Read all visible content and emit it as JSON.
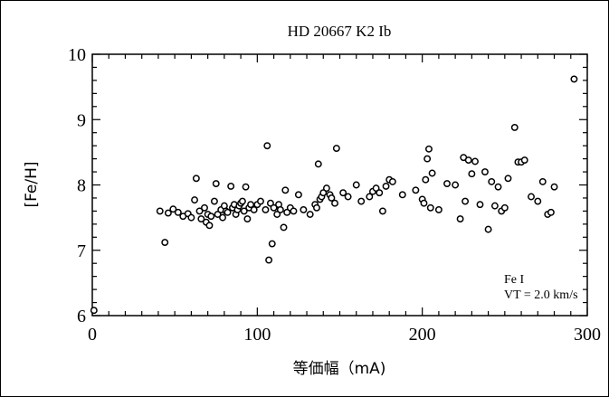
{
  "chart_data": {
    "type": "scatter",
    "title": "HD 20667  K2 Ib",
    "xlabel": "等価幅（mA)",
    "ylabel": "[Fe/H]",
    "xlim": [
      0,
      300
    ],
    "ylim": [
      6,
      10
    ],
    "x_ticks": [
      "0",
      "100",
      "200",
      "300"
    ],
    "y_ticks": [
      "6",
      "7",
      "8",
      "9",
      "10"
    ],
    "annotation": [
      "Fe I",
      "VT = 2.0 km/s"
    ],
    "grid": false,
    "series": [
      {
        "x": [
          1,
          41,
          44,
          46,
          49,
          52,
          55,
          58,
          60,
          62,
          63,
          65,
          66,
          68,
          69,
          70,
          71,
          72,
          74,
          75,
          76,
          78,
          79,
          80,
          81,
          82,
          84,
          85,
          86,
          87,
          88,
          89,
          90,
          91,
          92,
          93,
          94,
          95,
          96,
          98,
          100,
          102,
          105,
          106,
          107,
          108,
          109,
          110,
          112,
          113,
          114,
          116,
          117,
          118,
          120,
          122,
          125,
          128,
          132,
          135,
          136,
          137,
          138,
          139,
          140,
          142,
          144,
          145,
          147,
          148,
          152,
          155,
          160,
          163,
          168,
          170,
          172,
          174,
          176,
          178,
          180,
          182,
          188,
          196,
          200,
          201,
          202,
          203,
          204,
          205,
          206,
          210,
          215,
          220,
          223,
          225,
          226,
          228,
          230,
          232,
          235,
          238,
          240,
          242,
          244,
          246,
          248,
          250,
          252,
          256,
          258,
          260,
          262,
          266,
          270,
          273,
          276,
          278,
          280,
          292
        ],
        "y": [
          6.08,
          7.6,
          7.12,
          7.57,
          7.63,
          7.58,
          7.52,
          7.56,
          7.5,
          7.77,
          8.1,
          7.6,
          7.48,
          7.65,
          7.43,
          7.55,
          7.38,
          7.52,
          7.75,
          8.02,
          7.55,
          7.62,
          7.5,
          7.68,
          7.6,
          7.58,
          7.98,
          7.65,
          7.7,
          7.55,
          7.62,
          7.68,
          7.72,
          7.75,
          7.6,
          7.97,
          7.48,
          7.65,
          7.7,
          7.62,
          7.7,
          7.75,
          7.62,
          8.6,
          6.85,
          7.72,
          7.1,
          7.65,
          7.55,
          7.7,
          7.62,
          7.35,
          7.92,
          7.58,
          7.65,
          7.6,
          7.85,
          7.62,
          7.55,
          7.7,
          7.65,
          8.32,
          7.78,
          7.82,
          7.88,
          7.95,
          7.85,
          7.8,
          7.72,
          8.56,
          7.88,
          7.82,
          8.0,
          7.75,
          7.82,
          7.9,
          7.95,
          7.88,
          7.6,
          7.98,
          8.08,
          8.05,
          7.85,
          7.92,
          7.78,
          7.72,
          8.08,
          8.4,
          8.55,
          7.65,
          8.18,
          7.62,
          8.02,
          8.0,
          7.48,
          8.42,
          7.75,
          8.38,
          8.17,
          8.36,
          7.7,
          8.2,
          7.32,
          8.05,
          7.68,
          7.97,
          7.6,
          7.65,
          8.1,
          8.88,
          8.35,
          8.35,
          8.38,
          7.82,
          7.75,
          8.05,
          7.55,
          7.58,
          7.97,
          9.62
        ]
      }
    ]
  }
}
